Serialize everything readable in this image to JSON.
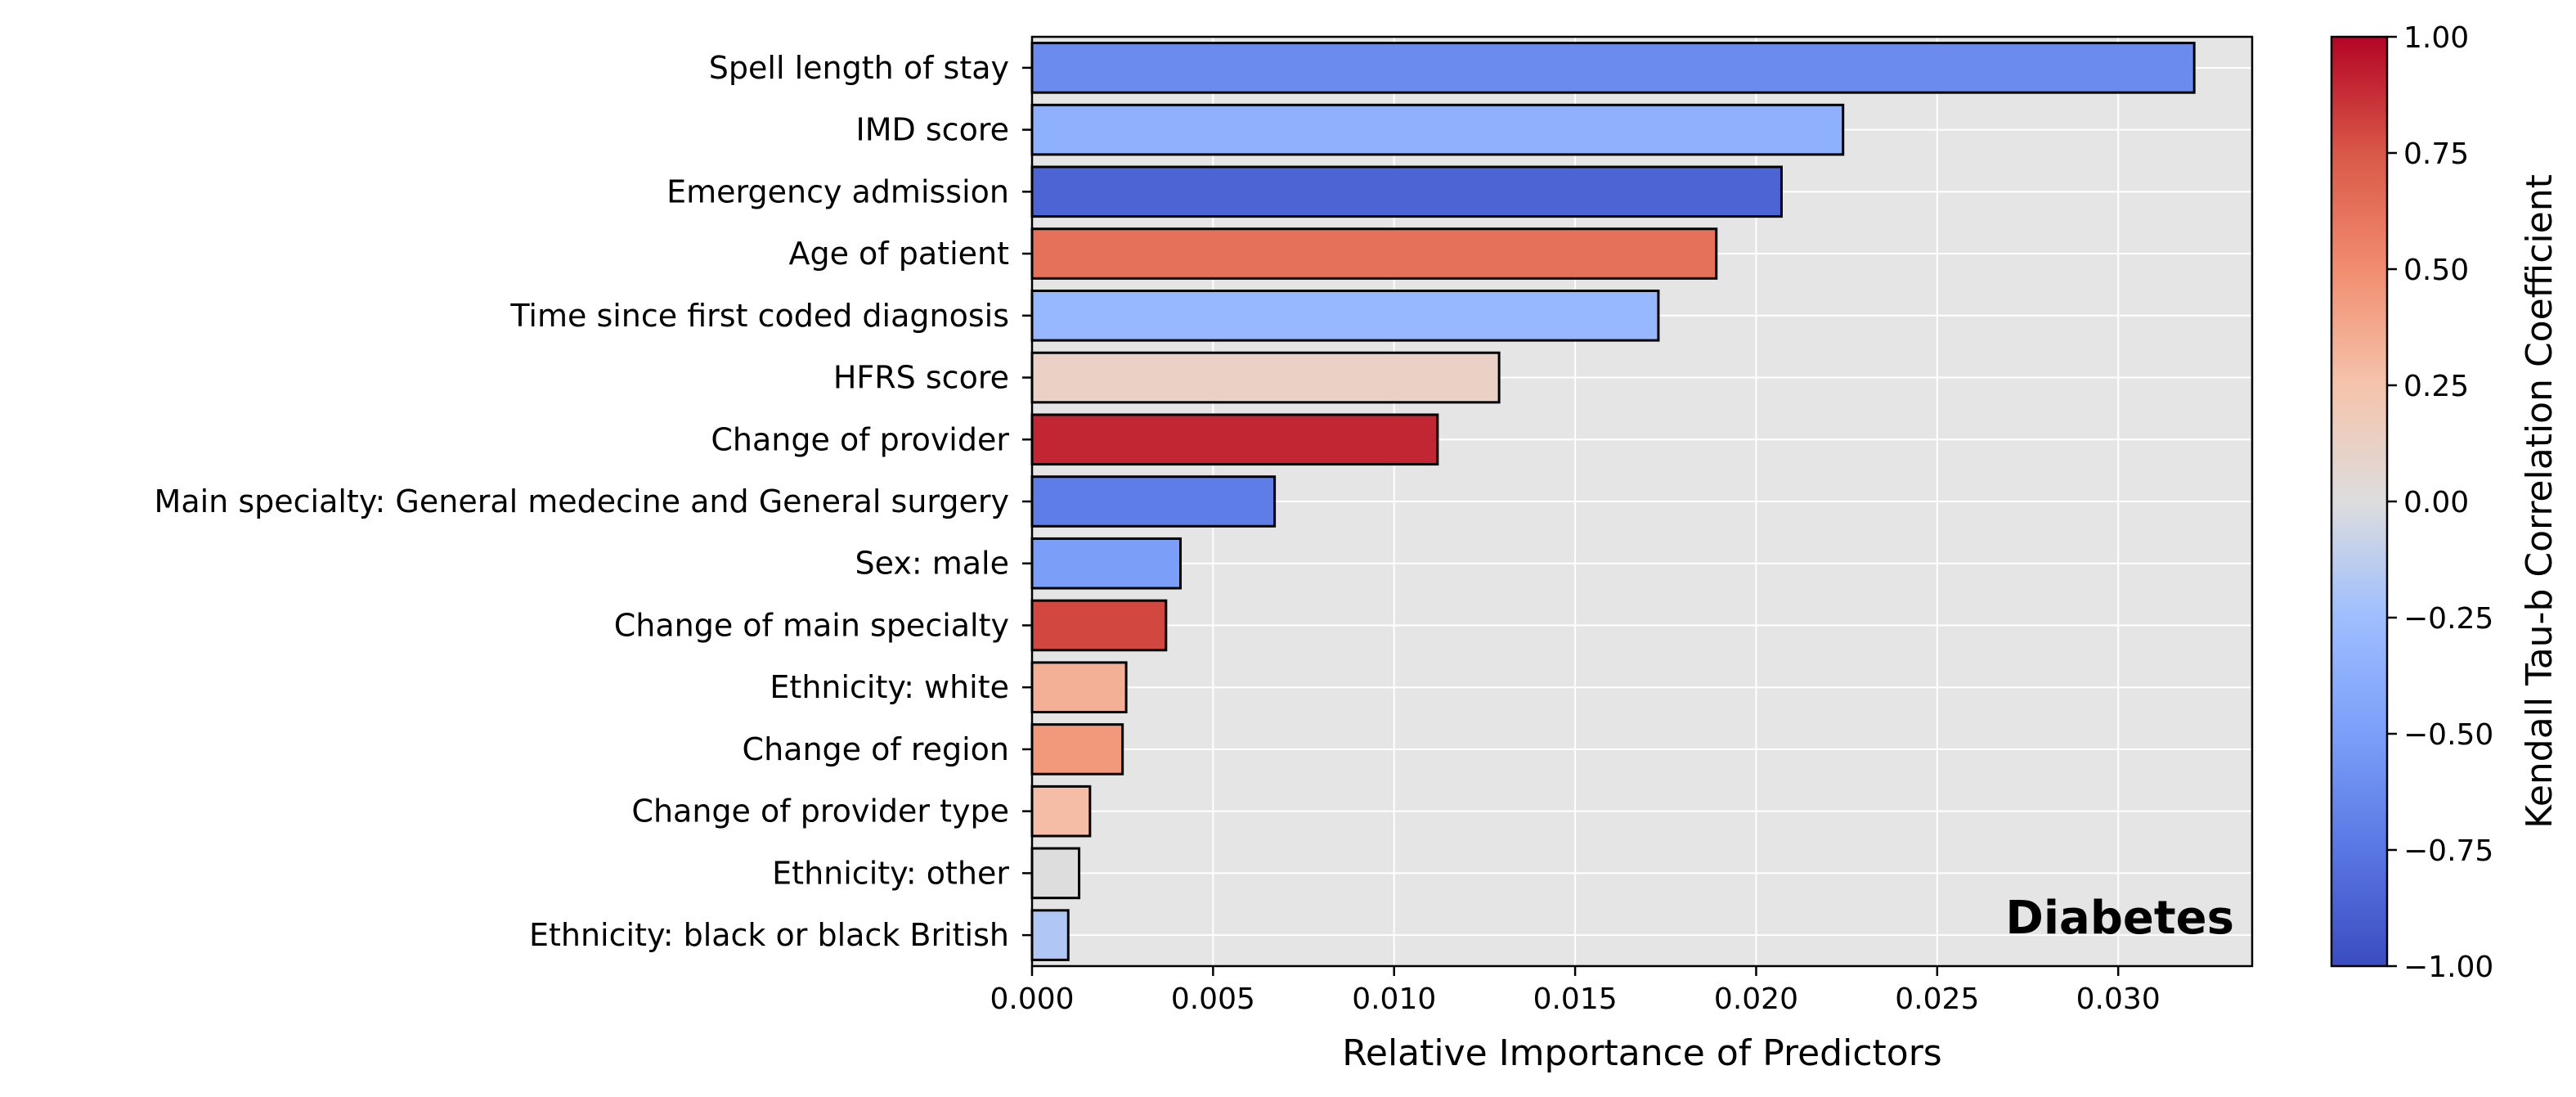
{
  "chart_data": {
    "type": "bar",
    "orientation": "horizontal",
    "categories": [
      "Spell length of stay",
      "IMD score",
      "Emergency admission",
      "Age of patient",
      "Time since first coded diagnosis",
      "HFRS score",
      "Change of provider",
      "Main specialty: General medecine and General surgery",
      "Sex: male",
      "Change of main specialty",
      "Ethnicity: white",
      "Change of region",
      "Change of provider type",
      "Ethnicity: other",
      "Ethnicity: black or black British"
    ],
    "values": [
      0.0321,
      0.0224,
      0.0207,
      0.0189,
      0.0173,
      0.0129,
      0.0112,
      0.0067,
      0.0041,
      0.0037,
      0.0026,
      0.0025,
      0.0016,
      0.0013,
      0.001
    ],
    "correlation": [
      -0.62,
      -0.36,
      -0.86,
      0.63,
      -0.3,
      0.12,
      0.9,
      -0.71,
      -0.5,
      0.8,
      0.34,
      0.45,
      0.28,
      0.0,
      -0.18
    ],
    "annotation": "Diabetes",
    "xlabel": "Relative Importance of Predictors",
    "xlim": [
      0,
      0.0337
    ],
    "xticks": [
      "0.000",
      "0.005",
      "0.010",
      "0.015",
      "0.020",
      "0.025",
      "0.030"
    ],
    "xtick_values": [
      0,
      0.005,
      0.01,
      0.015,
      0.02,
      0.025,
      0.03
    ],
    "grid": true,
    "plot_background": "#e5e5e5",
    "colorbar": {
      "label": "Kendall Tau-b Correlation Coefficient",
      "range": [
        -1,
        1
      ],
      "ticks": [
        "1.00",
        "0.75",
        "0.50",
        "0.25",
        "0.00",
        "−0.25",
        "−0.50",
        "−0.75",
        "−1.00"
      ],
      "tick_values": [
        1,
        0.75,
        0.5,
        0.25,
        0,
        -0.25,
        -0.5,
        -0.75,
        -1
      ],
      "colormap": "coolwarm",
      "colors": {
        "low": "#3b4cc0",
        "mid": "#dddddd",
        "high": "#b40426"
      }
    }
  }
}
